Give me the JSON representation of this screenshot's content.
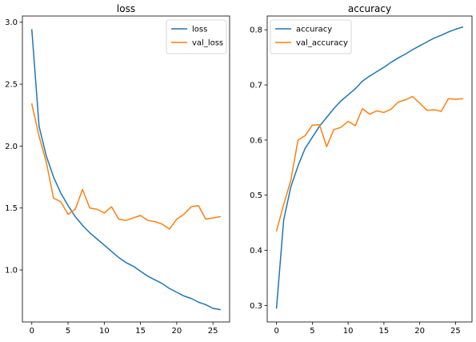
{
  "colors": {
    "blue": "#1f77b4",
    "orange": "#ff7f0e"
  },
  "chart_data": [
    {
      "type": "line",
      "title": "loss",
      "xlabel": "",
      "ylabel": "",
      "xlim": [
        -1.3,
        27.3
      ],
      "ylim": [
        0.58,
        3.05
      ],
      "xticks": [
        0,
        5,
        10,
        15,
        20,
        25
      ],
      "yticks": [
        1.0,
        1.5,
        2.0,
        2.5,
        3.0
      ],
      "ytick_labels": [
        "1.0",
        "1.5",
        "2.0",
        "2.5",
        "3.0"
      ],
      "grid": false,
      "legend": "upper-right",
      "x": [
        0,
        1,
        2,
        3,
        4,
        5,
        6,
        7,
        8,
        9,
        10,
        11,
        12,
        13,
        14,
        15,
        16,
        17,
        18,
        19,
        20,
        21,
        22,
        23,
        24,
        25,
        26
      ],
      "series": [
        {
          "name": "loss",
          "color": "#1f77b4",
          "values": [
            2.94,
            2.16,
            1.92,
            1.75,
            1.62,
            1.52,
            1.43,
            1.36,
            1.3,
            1.25,
            1.2,
            1.15,
            1.1,
            1.06,
            1.03,
            0.99,
            0.95,
            0.92,
            0.89,
            0.85,
            0.82,
            0.79,
            0.77,
            0.74,
            0.72,
            0.69,
            0.68
          ]
        },
        {
          "name": "val_loss",
          "color": "#ff7f0e",
          "values": [
            2.34,
            2.08,
            1.87,
            1.58,
            1.55,
            1.45,
            1.49,
            1.65,
            1.5,
            1.49,
            1.46,
            1.51,
            1.41,
            1.4,
            1.42,
            1.44,
            1.4,
            1.39,
            1.37,
            1.33,
            1.41,
            1.45,
            1.51,
            1.52,
            1.41,
            1.42,
            1.43
          ]
        }
      ]
    },
    {
      "type": "line",
      "title": "accuracy",
      "xlabel": "",
      "ylabel": "",
      "xlim": [
        -1.3,
        27.3
      ],
      "ylim": [
        0.27,
        0.825
      ],
      "xticks": [
        0,
        5,
        10,
        15,
        20,
        25
      ],
      "yticks": [
        0.3,
        0.4,
        0.5,
        0.6,
        0.7,
        0.8
      ],
      "ytick_labels": [
        "0.3",
        "0.4",
        "0.5",
        "0.6",
        "0.7",
        "0.8"
      ],
      "grid": false,
      "legend": "upper-left",
      "x": [
        0,
        1,
        2,
        3,
        4,
        5,
        6,
        7,
        8,
        9,
        10,
        11,
        12,
        13,
        14,
        15,
        16,
        17,
        18,
        19,
        20,
        21,
        22,
        23,
        24,
        25,
        26
      ],
      "series": [
        {
          "name": "accuracy",
          "color": "#1f77b4",
          "values": [
            0.295,
            0.455,
            0.515,
            0.553,
            0.585,
            0.605,
            0.625,
            0.641,
            0.657,
            0.671,
            0.682,
            0.693,
            0.707,
            0.716,
            0.724,
            0.732,
            0.741,
            0.749,
            0.756,
            0.764,
            0.771,
            0.778,
            0.785,
            0.79,
            0.796,
            0.801,
            0.805
          ]
        },
        {
          "name": "val_accuracy",
          "color": "#ff7f0e",
          "values": [
            0.435,
            0.483,
            0.527,
            0.6,
            0.608,
            0.627,
            0.628,
            0.588,
            0.619,
            0.623,
            0.634,
            0.626,
            0.657,
            0.647,
            0.653,
            0.65,
            0.656,
            0.669,
            0.673,
            0.679,
            0.667,
            0.654,
            0.655,
            0.652,
            0.675,
            0.674,
            0.675
          ]
        }
      ]
    }
  ]
}
